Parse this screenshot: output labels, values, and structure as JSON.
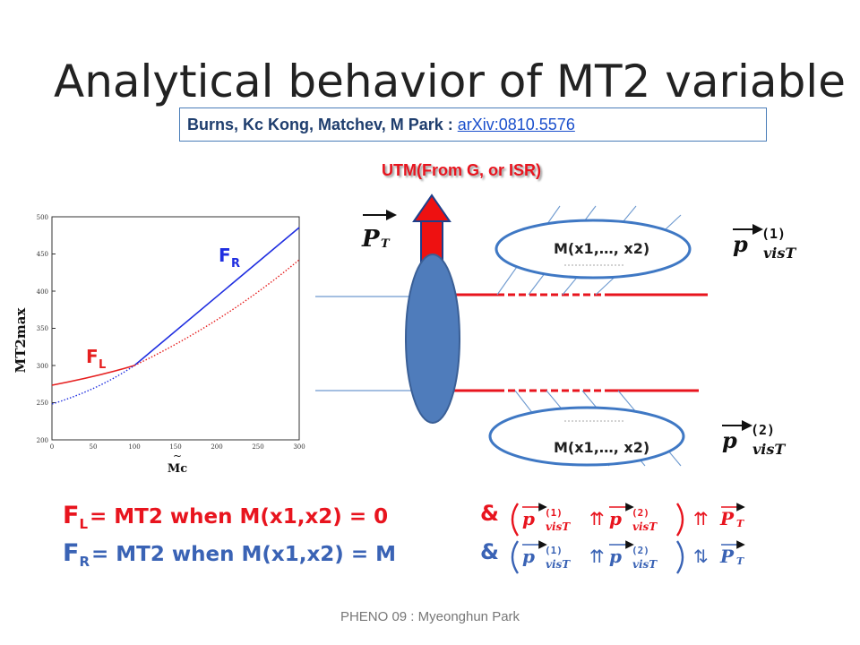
{
  "slide": {
    "title": "Analytical behavior of MT2 variable",
    "reference": {
      "authors": "Burns, Kc Kong, Matchev, M Park : ",
      "link": "arXiv:0810.5576"
    },
    "utm_label": "UTM(From G, or ISR)",
    "footer": "PHENO 09 : Myeonghun Park"
  },
  "plot": {
    "y_axis_label": "MT2max",
    "x_axis_label": "Mc",
    "y_ticks": [
      "500",
      "450",
      "400",
      "350",
      "300",
      "250",
      "200"
    ],
    "x_ticks": [
      "0",
      "50",
      "100",
      "150",
      "200",
      "250",
      "300"
    ],
    "label_fl": {
      "main": "F",
      "sub": "L"
    },
    "label_fr": {
      "main": "F",
      "sub": "R"
    }
  },
  "diagram": {
    "pt_label": "P",
    "pt_sub": "T",
    "top_blob_label": "M(x1,…, x2)",
    "bottom_blob_label": "M(x1,…, x2)",
    "pvis1": {
      "main": "p",
      "sup": "(1)",
      "sub": "visT"
    },
    "pvis2": {
      "main": "p",
      "sup": "(2)",
      "sub": "visT"
    }
  },
  "equations": {
    "fl": {
      "F": "F",
      "sub": "L",
      "text": "= MT2 when M(x1,x2) = 0"
    },
    "fr": {
      "F": "F",
      "sub": "R",
      "text": "= MT2 when M(x1,x2) = M"
    },
    "amp": "&",
    "parallel_symbol": "⇈",
    "antiparallel_symbol": "⇅",
    "p1": {
      "main": "p",
      "sup": "(1)",
      "sub": "visT"
    },
    "p2": {
      "main": "p",
      "sup": "(2)",
      "sub": "visT"
    },
    "pt": {
      "main": "P",
      "sub": "T"
    }
  },
  "colors": {
    "red": "#e8141e",
    "blue": "#3a63b5",
    "ellipse_fill": "#4f7cbb",
    "curve_blue": "#1f2ee0",
    "curve_red": "#e61f1f"
  }
}
